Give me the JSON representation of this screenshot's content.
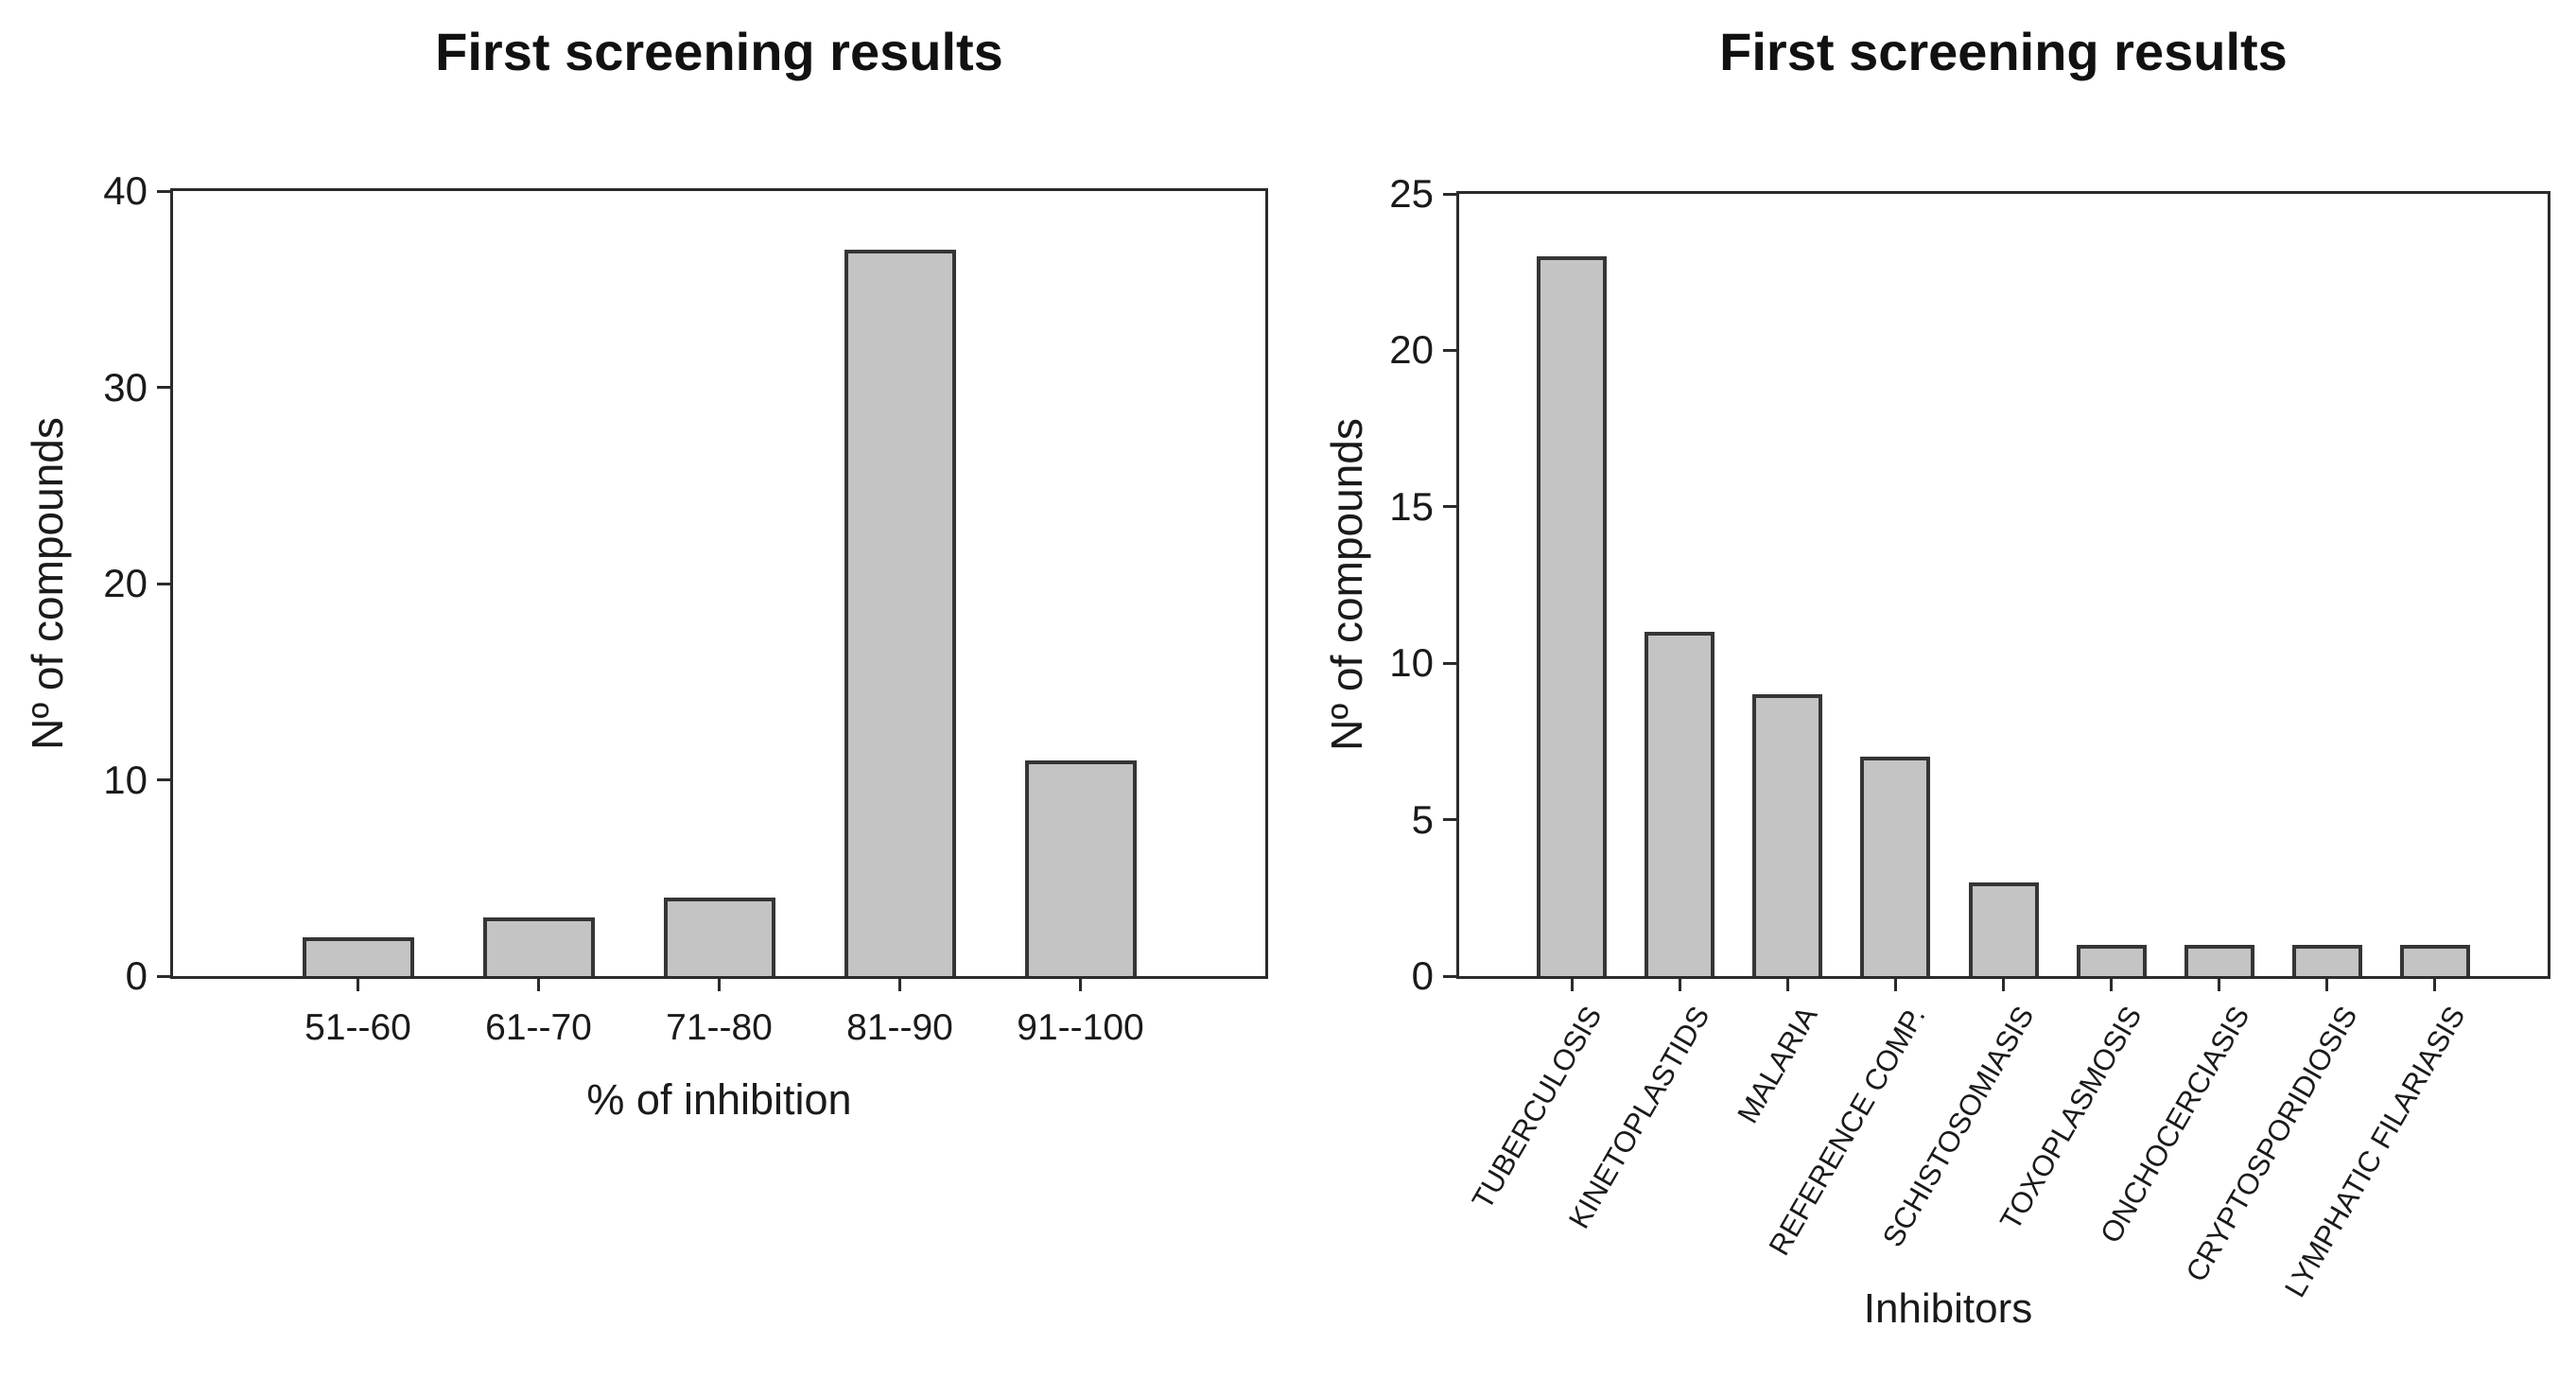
{
  "figure": {
    "background": "#ffffff",
    "text_color": "#1a1a1a",
    "axis_color": "#2b2b2b"
  },
  "chart_data": [
    {
      "type": "bar",
      "title": "First screening results",
      "ylabel": "Nº of compounds",
      "xlabel": "% of inhibition",
      "categories": [
        "51--60",
        "61--70",
        "71--80",
        "81--90",
        "91--100"
      ],
      "values": [
        2,
        3,
        4,
        37,
        11
      ],
      "ylim": [
        0,
        40
      ],
      "yticks": [
        0,
        10,
        20,
        30,
        40
      ],
      "x_tick_rotation": 0,
      "grid": false,
      "legend": null,
      "bar_fill": "#c4c4c4",
      "bar_border": "#353535"
    },
    {
      "type": "bar",
      "title": "First screening results",
      "ylabel": "Nº of compounds",
      "xlabel": "Inhibitors",
      "categories": [
        "TUBERCULOSIS",
        "KINETOPLASTIDS",
        "MALARIA",
        "REFERENCE COMP.",
        "SCHISTOSOMIASIS",
        "TOXOPLASMOSIS",
        "ONCHOCERCIASIS",
        "CRYPTOSPORIDIOSIS",
        "LYMPHATIC FILARIASIS"
      ],
      "values": [
        23,
        11,
        9,
        7,
        3,
        1,
        1,
        1,
        1
      ],
      "ylim": [
        0,
        25
      ],
      "yticks": [
        0,
        5,
        10,
        15,
        20,
        25
      ],
      "x_tick_rotation": 60,
      "grid": false,
      "legend": null,
      "bar_fill": "#c4c4c4",
      "bar_border": "#353535"
    }
  ]
}
